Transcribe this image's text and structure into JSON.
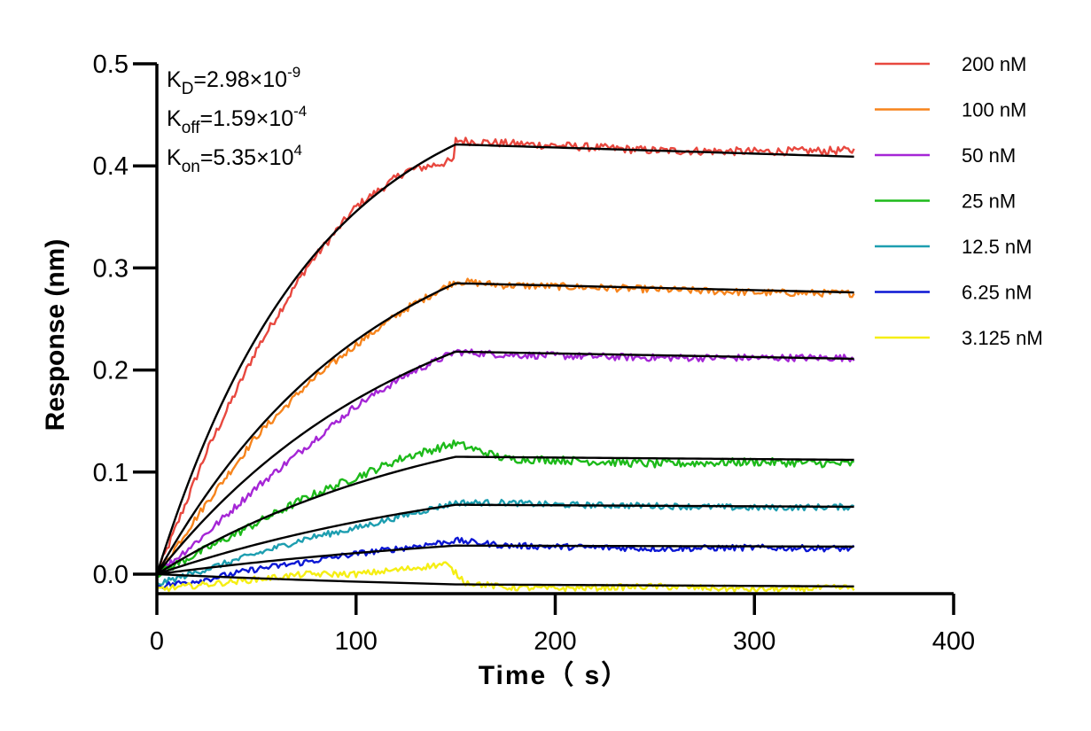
{
  "chart_data": {
    "type": "line",
    "title": "",
    "xlabel": "Time（ s）",
    "ylabel": "Response (nm)",
    "xlim": [
      0,
      400
    ],
    "ylim": [
      -0.02,
      0.5
    ],
    "x_ticks": [
      0,
      100,
      200,
      300,
      400
    ],
    "x_tick_labels": [
      "0",
      "100",
      "200",
      "300",
      "400"
    ],
    "y_ticks": [
      0.0,
      0.1,
      0.2,
      0.3,
      0.4,
      0.5
    ],
    "y_tick_labels": [
      "0.0",
      "0.1",
      "0.2",
      "0.3",
      "0.4",
      "0.5"
    ],
    "grid": false,
    "legend_position": "right",
    "association_end_s": 150,
    "end_s": 350,
    "annotations": {
      "kd": {
        "base": "K",
        "sub": "D",
        "value": "=2.98×10",
        "exp": "-9"
      },
      "koff": {
        "base": "K",
        "sub": "off",
        "value": "=1.59×10",
        "exp": "-4"
      },
      "kon": {
        "base": "K",
        "sub": "on",
        "value": "=5.35×10",
        "exp": "4"
      }
    },
    "fit_color": "#000000",
    "series": [
      {
        "name": "200 nM",
        "color": "#e8483f",
        "plateau": 0.421,
        "end": 0.409,
        "assoc_k": 0.0126,
        "noise": 0.004,
        "x": [
          0,
          25,
          50,
          75,
          100,
          125,
          149,
          150,
          175,
          200,
          250,
          300,
          350
        ],
        "y": [
          0.0,
          0.12,
          0.22,
          0.3,
          0.36,
          0.395,
          0.405,
          0.425,
          0.422,
          0.42,
          0.415,
          0.414,
          0.415
        ]
      },
      {
        "name": "100 nM",
        "color": "#f7841c",
        "plateau": 0.285,
        "end": 0.276,
        "assoc_k": 0.0092,
        "noise": 0.0035,
        "x": [
          0,
          25,
          50,
          75,
          100,
          125,
          150,
          175,
          200,
          250,
          300,
          350
        ],
        "y": [
          0.0,
          0.07,
          0.135,
          0.185,
          0.225,
          0.26,
          0.287,
          0.283,
          0.282,
          0.279,
          0.276,
          0.275
        ]
      },
      {
        "name": "50 nM",
        "color": "#a526d6",
        "plateau": 0.218,
        "end": 0.211,
        "assoc_k": 0.0078,
        "noise": 0.0035,
        "x": [
          0,
          25,
          50,
          75,
          100,
          125,
          150,
          175,
          200,
          250,
          300,
          350
        ],
        "y": [
          0.0,
          0.04,
          0.085,
          0.125,
          0.165,
          0.195,
          0.218,
          0.215,
          0.214,
          0.212,
          0.212,
          0.212
        ]
      },
      {
        "name": "25 nM",
        "color": "#1dba1a",
        "plateau": 0.115,
        "end": 0.112,
        "assoc_k": 0.0068,
        "noise": 0.004,
        "x": [
          0,
          25,
          50,
          75,
          100,
          125,
          150,
          175,
          200,
          250,
          300,
          350
        ],
        "y": [
          0.0,
          0.025,
          0.05,
          0.075,
          0.095,
          0.115,
          0.128,
          0.113,
          0.112,
          0.108,
          0.11,
          0.108
        ]
      },
      {
        "name": "12.5 nM",
        "color": "#1d9eb0",
        "plateau": 0.068,
        "end": 0.066,
        "assoc_k": 0.0055,
        "noise": 0.003,
        "x": [
          0,
          25,
          50,
          75,
          100,
          125,
          150,
          175,
          200,
          250,
          300,
          350
        ],
        "y": [
          -0.01,
          0.005,
          0.02,
          0.035,
          0.045,
          0.058,
          0.07,
          0.07,
          0.068,
          0.067,
          0.065,
          0.066
        ]
      },
      {
        "name": "6.25 nM",
        "color": "#0c17d4",
        "plateau": 0.028,
        "end": 0.027,
        "assoc_k": 0.0045,
        "noise": 0.003,
        "x": [
          0,
          25,
          50,
          75,
          100,
          125,
          150,
          175,
          200,
          250,
          300,
          350
        ],
        "y": [
          -0.012,
          -0.005,
          0.005,
          0.012,
          0.02,
          0.026,
          0.033,
          0.028,
          0.027,
          0.025,
          0.026,
          0.025
        ]
      },
      {
        "name": "3.125 nM",
        "color": "#f5ee14",
        "plateau": -0.01,
        "end": -0.012,
        "assoc_k": 0.004,
        "noise": 0.003,
        "x": [
          0,
          25,
          50,
          75,
          100,
          125,
          145,
          155,
          175,
          200,
          250,
          300,
          350
        ],
        "y": [
          -0.015,
          -0.01,
          -0.005,
          0.0,
          0.0,
          0.005,
          0.01,
          -0.008,
          -0.013,
          -0.014,
          -0.012,
          -0.015,
          -0.013
        ]
      }
    ]
  }
}
